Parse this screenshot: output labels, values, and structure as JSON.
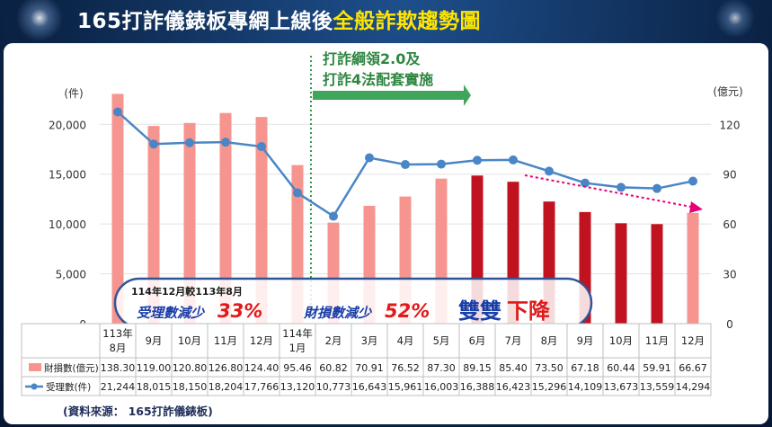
{
  "title": {
    "prefix": "165打詐儀錶板專網上線後",
    "highlight": "全般詐欺趨勢圖"
  },
  "colors": {
    "bar_light": "#f6958f",
    "bar_dark": "#c1121f",
    "line": "#4a86c5",
    "policy_line": "#2e9e45",
    "trend_arrow": "#e6007a",
    "callout_border": "#2f5597",
    "callout_text": "#1a3ea8",
    "callout_number": "#e01a1a",
    "title_highlight": "#ffe600"
  },
  "annotation": {
    "policy_line1": "打詐綱領2.0及",
    "policy_line2": "打詐4法配套實施"
  },
  "callout": {
    "compare": "114年12月較113年8月",
    "case_label": "受理數減少",
    "case_value": "33%",
    "loss_label": "財損數減少",
    "loss_value": "52%",
    "down_label_a": "雙雙",
    "down_label_b": "下降"
  },
  "source": "(資料來源： 165打詐儀錶板)",
  "chart_data": {
    "type": "bar",
    "y_left": {
      "unit": "(件)",
      "ticks": [
        "20,000",
        "15,000",
        "10,000",
        "5,000",
        "0"
      ],
      "range": [
        0,
        23000
      ]
    },
    "y_right": {
      "unit": "(億元)",
      "ticks": [
        "120",
        "90",
        "60",
        "30",
        "0"
      ],
      "range": [
        0,
        138
      ]
    },
    "categories": [
      {
        "line1": "113年",
        "line2": "8月"
      },
      {
        "line1": "9月",
        "line2": ""
      },
      {
        "line1": "10月",
        "line2": ""
      },
      {
        "line1": "11月",
        "line2": ""
      },
      {
        "line1": "12月",
        "line2": ""
      },
      {
        "line1": "114年",
        "line2": "1月"
      },
      {
        "line1": "2月",
        "line2": ""
      },
      {
        "line1": "3月",
        "line2": ""
      },
      {
        "line1": "4月",
        "line2": ""
      },
      {
        "line1": "5月",
        "line2": ""
      },
      {
        "line1": "6月",
        "line2": ""
      },
      {
        "line1": "7月",
        "line2": ""
      },
      {
        "line1": "8月",
        "line2": ""
      },
      {
        "line1": "9月",
        "line2": ""
      },
      {
        "line1": "10月",
        "line2": ""
      },
      {
        "line1": "11月",
        "line2": ""
      },
      {
        "line1": "12月",
        "line2": ""
      }
    ],
    "series": [
      {
        "name": "財損數(億元)",
        "kind": "bar",
        "axis": "right",
        "values": [
          138.3,
          119.0,
          120.8,
          126.8,
          124.4,
          95.46,
          60.82,
          70.91,
          76.52,
          87.3,
          89.15,
          85.4,
          73.5,
          67.18,
          60.44,
          59.91,
          66.67
        ],
        "labels": [
          "138.30",
          "119.00",
          "120.80",
          "126.80",
          "124.40",
          "95.46",
          "60.82",
          "70.91",
          "76.52",
          "87.30",
          "89.15",
          "85.40",
          "73.50",
          "67.18",
          "60.44",
          "59.91",
          "66.67"
        ],
        "highlight_dark": [
          10,
          11,
          12,
          13,
          14,
          15
        ]
      },
      {
        "name": "受理數(件)",
        "kind": "line",
        "axis": "left",
        "values": [
          21244,
          18015,
          18150,
          18204,
          17766,
          13120,
          10773,
          16643,
          15961,
          16003,
          16388,
          16423,
          15296,
          14109,
          13673,
          13559,
          14294
        ],
        "labels": [
          "21,244",
          "18,015",
          "18,150",
          "18,204",
          "17,766",
          "13,120",
          "10,773",
          "16,643",
          "15,961",
          "16,003",
          "16,388",
          "16,423",
          "15,296",
          "14,109",
          "13,673",
          "13,559",
          "14,294"
        ]
      }
    ]
  }
}
